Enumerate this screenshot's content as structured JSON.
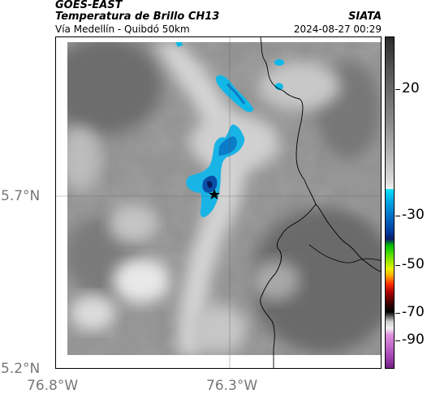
{
  "header": {
    "satellite": "GOES-EAST",
    "product": "Temperatura de Brillo CH13",
    "region": "Vía Medellín - Quibdó 50km",
    "agency": "SIATA",
    "datetime": "2024-08-27 00:29"
  },
  "map": {
    "lat_ticks": [
      "5.7°N",
      "5.2°N"
    ],
    "lon_ticks": [
      "76.8°W",
      "76.3°W"
    ],
    "marker": "star"
  },
  "colorbar": {
    "labels": [
      "20",
      "-30",
      "-50",
      "-70",
      "-90"
    ]
  }
}
